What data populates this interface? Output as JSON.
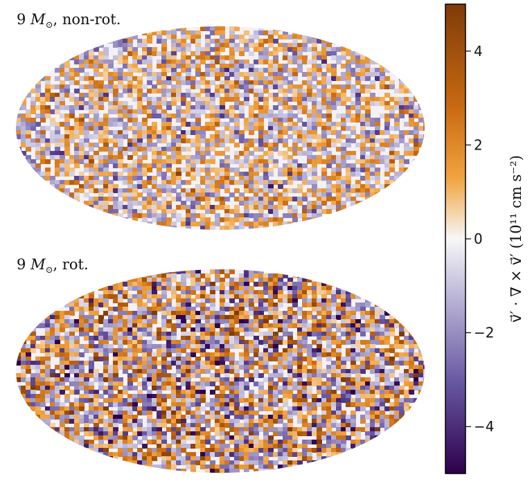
{
  "panels": [
    {
      "title_number": "9",
      "title_symbol": "M",
      "title_sub": "⊙",
      "title_suffix": ", non-rot."
    },
    {
      "title_number": "9",
      "title_symbol": "M",
      "title_sub": "⊙",
      "title_suffix": ", rot."
    }
  ],
  "chart_data": {
    "type": "heatmap",
    "projection": "mollweide",
    "panels": [
      "9 M⊙, non-rot.",
      "9 M⊙, rot."
    ],
    "colorbar": {
      "label": "v⃗′ · ∇ × v⃗′ (10¹¹ cm s⁻²)",
      "ticks": [
        4,
        2,
        0,
        -2,
        -4
      ],
      "tick_labels": [
        "4",
        "2",
        "0",
        "−2",
        "−4"
      ],
      "range": [
        -5,
        5
      ],
      "colors": {
        "positive": "#7f3b08",
        "mid_positive": "#f1a340",
        "zero": "#f7f7f7",
        "mid_negative": "#998ec3",
        "negative": "#2d004b"
      }
    }
  }
}
